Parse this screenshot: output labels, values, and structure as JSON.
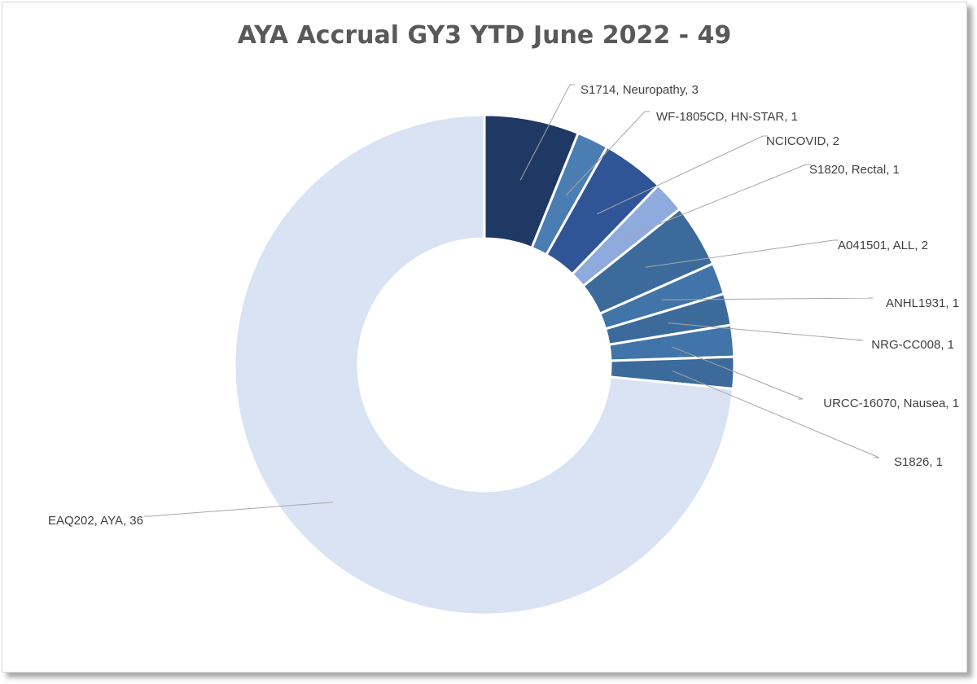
{
  "chart_data": {
    "type": "pie",
    "title": "AYA Accrual GY3 YTD June 2022 - 49",
    "hole": true,
    "slices": [
      {
        "label": "S1714, Neuropathy, 3",
        "value": 3,
        "color": "#203864"
      },
      {
        "label": "WF-1805CD, HN-STAR, 1",
        "value": 1,
        "color": "#4a7eb3"
      },
      {
        "label": "NCICOVID, 2",
        "value": 2,
        "color": "#2f5597"
      },
      {
        "label": "S1820, Rectal, 1",
        "value": 1,
        "color": "#8faadc"
      },
      {
        "label": "A041501, ALL, 2",
        "value": 2,
        "color": "#3c6b9b"
      },
      {
        "label": "ANHL1931, 1",
        "value": 1,
        "color": "#4174a8"
      },
      {
        "label": "NRG-CC008, 1",
        "value": 1,
        "color": "#3c6b9b"
      },
      {
        "label": "URCC-16070, Nausea, 1",
        "value": 1,
        "color": "#4174a8"
      },
      {
        "label": "S1826, 1",
        "value": 1,
        "color": "#3c6b9b"
      },
      {
        "label": "EAQ202, AYA, 36",
        "value": 36,
        "color": "#dae3f3"
      }
    ]
  }
}
